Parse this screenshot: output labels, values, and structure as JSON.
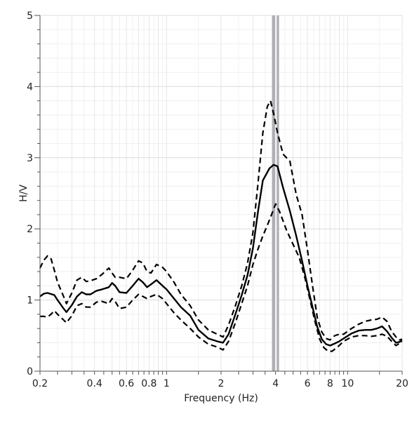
{
  "chart_data": {
    "type": "line",
    "xlabel": "Frequency (Hz)",
    "ylabel": "H/V",
    "x_scale": "log",
    "xlim": [
      0.2,
      20
    ],
    "ylim": [
      0,
      5
    ],
    "grid": true,
    "x_ticks": [
      {
        "value": 0.2,
        "label": "0.2"
      },
      {
        "value": 0.4,
        "label": "0.4"
      },
      {
        "value": 0.6,
        "label": "0.6"
      },
      {
        "value": 0.8,
        "label": "0.8"
      },
      {
        "value": 1,
        "label": "1"
      },
      {
        "value": 2,
        "label": "2"
      },
      {
        "value": 4,
        "label": "4"
      },
      {
        "value": 6,
        "label": "6"
      },
      {
        "value": 8,
        "label": "8"
      },
      {
        "value": 10,
        "label": "10"
      },
      {
        "value": 20,
        "label": "20"
      }
    ],
    "y_ticks": [
      {
        "value": 0,
        "label": "0"
      },
      {
        "value": 1,
        "label": "1"
      },
      {
        "value": 2,
        "label": "2"
      },
      {
        "value": 3,
        "label": "3"
      },
      {
        "value": 4,
        "label": "4"
      },
      {
        "value": 5,
        "label": "5"
      }
    ],
    "peak_band": {
      "x_from": 3.82,
      "x_to": 4.18,
      "center": 4.02,
      "color": "#b0b0b4"
    },
    "series": [
      {
        "style": "solid",
        "color": "#000000",
        "points": [
          [
            0.2,
            1.05
          ],
          [
            0.21,
            1.09
          ],
          [
            0.22,
            1.1
          ],
          [
            0.24,
            1.07
          ],
          [
            0.25,
            1.0
          ],
          [
            0.27,
            0.88
          ],
          [
            0.28,
            0.83
          ],
          [
            0.3,
            0.93
          ],
          [
            0.32,
            1.05
          ],
          [
            0.34,
            1.11
          ],
          [
            0.36,
            1.08
          ],
          [
            0.38,
            1.08
          ],
          [
            0.41,
            1.13
          ],
          [
            0.44,
            1.15
          ],
          [
            0.48,
            1.18
          ],
          [
            0.5,
            1.24
          ],
          [
            0.52,
            1.2
          ],
          [
            0.55,
            1.11
          ],
          [
            0.6,
            1.1
          ],
          [
            0.65,
            1.2
          ],
          [
            0.7,
            1.3
          ],
          [
            0.74,
            1.25
          ],
          [
            0.78,
            1.18
          ],
          [
            0.82,
            1.22
          ],
          [
            0.88,
            1.28
          ],
          [
            0.95,
            1.2
          ],
          [
            1.0,
            1.15
          ],
          [
            1.1,
            1.02
          ],
          [
            1.2,
            0.9
          ],
          [
            1.35,
            0.78
          ],
          [
            1.5,
            0.58
          ],
          [
            1.7,
            0.46
          ],
          [
            1.9,
            0.42
          ],
          [
            2.05,
            0.4
          ],
          [
            2.2,
            0.52
          ],
          [
            2.4,
            0.8
          ],
          [
            2.6,
            1.07
          ],
          [
            2.8,
            1.35
          ],
          [
            3.0,
            1.73
          ],
          [
            3.2,
            2.25
          ],
          [
            3.4,
            2.68
          ],
          [
            3.7,
            2.85
          ],
          [
            3.9,
            2.9
          ],
          [
            4.1,
            2.88
          ],
          [
            4.4,
            2.58
          ],
          [
            4.8,
            2.25
          ],
          [
            5.2,
            1.9
          ],
          [
            5.6,
            1.55
          ],
          [
            6.0,
            1.2
          ],
          [
            6.4,
            0.9
          ],
          [
            6.8,
            0.62
          ],
          [
            7.2,
            0.45
          ],
          [
            7.6,
            0.38
          ],
          [
            8.0,
            0.36
          ],
          [
            8.5,
            0.39
          ],
          [
            9.0,
            0.42
          ],
          [
            9.5,
            0.46
          ],
          [
            10.5,
            0.53
          ],
          [
            11.5,
            0.57
          ],
          [
            12.5,
            0.58
          ],
          [
            13.5,
            0.58
          ],
          [
            14.5,
            0.6
          ],
          [
            15.5,
            0.63
          ],
          [
            16.5,
            0.56
          ],
          [
            17.5,
            0.47
          ],
          [
            18.5,
            0.4
          ],
          [
            19.3,
            0.41
          ],
          [
            20,
            0.43
          ]
        ]
      },
      {
        "style": "dashed",
        "color": "#000000",
        "points": [
          [
            0.2,
            1.45
          ],
          [
            0.21,
            1.56
          ],
          [
            0.22,
            1.62
          ],
          [
            0.23,
            1.58
          ],
          [
            0.24,
            1.42
          ],
          [
            0.25,
            1.25
          ],
          [
            0.27,
            1.05
          ],
          [
            0.28,
            0.95
          ],
          [
            0.3,
            1.1
          ],
          [
            0.32,
            1.28
          ],
          [
            0.34,
            1.32
          ],
          [
            0.36,
            1.26
          ],
          [
            0.38,
            1.27
          ],
          [
            0.41,
            1.3
          ],
          [
            0.44,
            1.36
          ],
          [
            0.48,
            1.45
          ],
          [
            0.5,
            1.38
          ],
          [
            0.52,
            1.32
          ],
          [
            0.55,
            1.32
          ],
          [
            0.6,
            1.3
          ],
          [
            0.65,
            1.42
          ],
          [
            0.7,
            1.55
          ],
          [
            0.74,
            1.52
          ],
          [
            0.78,
            1.4
          ],
          [
            0.82,
            1.38
          ],
          [
            0.88,
            1.5
          ],
          [
            0.95,
            1.46
          ],
          [
            1.0,
            1.4
          ],
          [
            1.1,
            1.25
          ],
          [
            1.2,
            1.08
          ],
          [
            1.35,
            0.92
          ],
          [
            1.5,
            0.72
          ],
          [
            1.7,
            0.58
          ],
          [
            1.9,
            0.52
          ],
          [
            2.05,
            0.48
          ],
          [
            2.2,
            0.65
          ],
          [
            2.4,
            0.92
          ],
          [
            2.6,
            1.2
          ],
          [
            2.8,
            1.52
          ],
          [
            3.0,
            1.95
          ],
          [
            3.2,
            2.65
          ],
          [
            3.4,
            3.35
          ],
          [
            3.6,
            3.72
          ],
          [
            3.75,
            3.8
          ],
          [
            3.9,
            3.62
          ],
          [
            4.1,
            3.35
          ],
          [
            4.4,
            3.05
          ],
          [
            4.8,
            2.95
          ],
          [
            5.2,
            2.48
          ],
          [
            5.6,
            2.2
          ],
          [
            6.0,
            1.7
          ],
          [
            6.4,
            1.2
          ],
          [
            6.8,
            0.75
          ],
          [
            7.2,
            0.55
          ],
          [
            7.6,
            0.46
          ],
          [
            8.0,
            0.44
          ],
          [
            8.5,
            0.5
          ],
          [
            9.0,
            0.52
          ],
          [
            9.5,
            0.52
          ],
          [
            10.5,
            0.6
          ],
          [
            11.5,
            0.66
          ],
          [
            12.5,
            0.7
          ],
          [
            13.5,
            0.72
          ],
          [
            14.5,
            0.73
          ],
          [
            15.5,
            0.76
          ],
          [
            16.5,
            0.7
          ],
          [
            17.5,
            0.56
          ],
          [
            18.5,
            0.48
          ],
          [
            19.3,
            0.44
          ],
          [
            20,
            0.45
          ]
        ]
      },
      {
        "style": "dashed",
        "color": "#000000",
        "points": [
          [
            0.2,
            0.77
          ],
          [
            0.21,
            0.77
          ],
          [
            0.22,
            0.76
          ],
          [
            0.23,
            0.8
          ],
          [
            0.24,
            0.85
          ],
          [
            0.25,
            0.8
          ],
          [
            0.27,
            0.72
          ],
          [
            0.28,
            0.68
          ],
          [
            0.3,
            0.78
          ],
          [
            0.32,
            0.92
          ],
          [
            0.34,
            0.95
          ],
          [
            0.36,
            0.9
          ],
          [
            0.38,
            0.9
          ],
          [
            0.41,
            0.97
          ],
          [
            0.44,
            0.98
          ],
          [
            0.48,
            0.95
          ],
          [
            0.5,
            1.02
          ],
          [
            0.52,
            0.98
          ],
          [
            0.55,
            0.88
          ],
          [
            0.6,
            0.9
          ],
          [
            0.65,
            1.0
          ],
          [
            0.7,
            1.08
          ],
          [
            0.74,
            1.05
          ],
          [
            0.78,
            1.02
          ],
          [
            0.82,
            1.05
          ],
          [
            0.88,
            1.08
          ],
          [
            0.95,
            1.02
          ],
          [
            1.0,
            0.95
          ],
          [
            1.1,
            0.82
          ],
          [
            1.2,
            0.72
          ],
          [
            1.35,
            0.6
          ],
          [
            1.5,
            0.48
          ],
          [
            1.7,
            0.38
          ],
          [
            1.9,
            0.34
          ],
          [
            2.05,
            0.3
          ],
          [
            2.2,
            0.42
          ],
          [
            2.4,
            0.68
          ],
          [
            2.6,
            0.95
          ],
          [
            2.8,
            1.2
          ],
          [
            3.0,
            1.5
          ],
          [
            3.2,
            1.72
          ],
          [
            3.4,
            1.9
          ],
          [
            3.6,
            2.05
          ],
          [
            3.8,
            2.2
          ],
          [
            4.0,
            2.35
          ],
          [
            4.2,
            2.25
          ],
          [
            4.6,
            1.98
          ],
          [
            5.0,
            1.78
          ],
          [
            5.4,
            1.6
          ],
          [
            5.8,
            1.32
          ],
          [
            6.2,
            1.0
          ],
          [
            6.6,
            0.7
          ],
          [
            7.0,
            0.45
          ],
          [
            7.4,
            0.33
          ],
          [
            7.8,
            0.28
          ],
          [
            8.2,
            0.28
          ],
          [
            8.8,
            0.34
          ],
          [
            9.5,
            0.42
          ],
          [
            10.5,
            0.48
          ],
          [
            11.5,
            0.5
          ],
          [
            12.5,
            0.5
          ],
          [
            13.5,
            0.49
          ],
          [
            14.5,
            0.5
          ],
          [
            15.5,
            0.52
          ],
          [
            16.5,
            0.49
          ],
          [
            17.5,
            0.42
          ],
          [
            18.5,
            0.36
          ],
          [
            19.3,
            0.39
          ],
          [
            20,
            0.41
          ]
        ]
      }
    ]
  }
}
